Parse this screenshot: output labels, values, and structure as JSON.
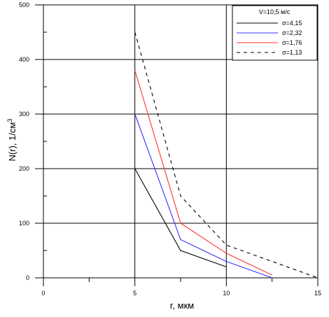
{
  "chart_data": {
    "type": "line",
    "title": "",
    "xlabel": "r, мкм",
    "ylabel": "N(r), 1/см",
    "ylabel_sup": "3",
    "xlim": [
      0,
      15
    ],
    "ylim": [
      0,
      500
    ],
    "x_ticks": [
      "0",
      "5",
      "10",
      "15"
    ],
    "y_ticks": [
      "0",
      "100",
      "200",
      "300",
      "400",
      "500"
    ],
    "grid": true,
    "legend_title": "V=10,5 м/с",
    "legend_position": "top-right",
    "series": [
      {
        "name": "σ=4,15",
        "color": "#000000",
        "dash": "solid",
        "points": [
          [
            5,
            200
          ],
          [
            7.5,
            50
          ],
          [
            10,
            20
          ]
        ]
      },
      {
        "name": "σ=2,32",
        "color": "#3333ff",
        "dash": "solid",
        "points": [
          [
            5,
            300
          ],
          [
            7.5,
            70
          ],
          [
            10,
            30
          ],
          [
            12.5,
            0
          ]
        ]
      },
      {
        "name": "σ=1,76",
        "color": "#ff3333",
        "dash": "solid",
        "points": [
          [
            5,
            380
          ],
          [
            7.5,
            100
          ],
          [
            10,
            45
          ],
          [
            12.5,
            5
          ]
        ]
      },
      {
        "name": "σ=1,13",
        "color": "#000000",
        "dash": "dashed",
        "points": [
          [
            5,
            450
          ],
          [
            7.5,
            150
          ],
          [
            10,
            60
          ],
          [
            15,
            0
          ]
        ]
      }
    ]
  }
}
